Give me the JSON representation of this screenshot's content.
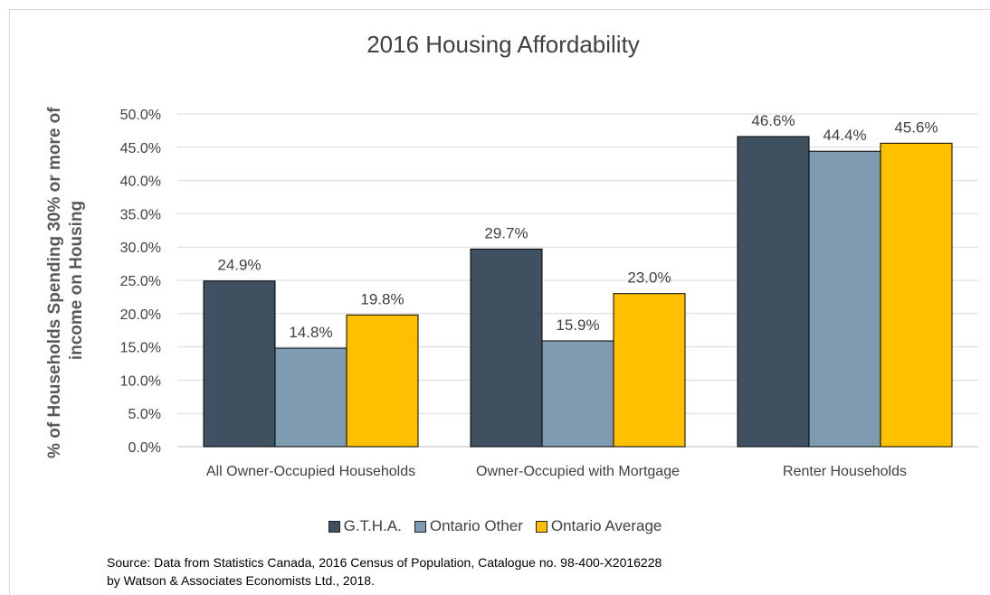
{
  "chart_data": {
    "type": "bar",
    "title": "2016 Housing Affordability",
    "y_label": [
      "% of Households Spending 30% or more of",
      "income on Housing"
    ],
    "categories": [
      "All Owner-Occupied Households",
      "Owner-Occupied with Mortgage",
      "Renter Households"
    ],
    "series": [
      {
        "name": "G.T.H.A.",
        "color": "#3f5060",
        "values": [
          24.9,
          29.7,
          46.6
        ],
        "value_labels": [
          "24.9%",
          "29.7%",
          "46.6%"
        ]
      },
      {
        "name": "Ontario Other",
        "color": "#7f9bb0",
        "values": [
          14.8,
          15.9,
          44.4
        ],
        "value_labels": [
          "14.8%",
          "15.9%",
          "44.4%"
        ]
      },
      {
        "name": "Ontario Average",
        "color": "#ffc000",
        "values": [
          19.8,
          23.0,
          45.6
        ],
        "value_labels": [
          "19.8%",
          "23.0%",
          "45.6%"
        ]
      }
    ],
    "ylim": [
      0,
      50
    ],
    "yticks": [
      {
        "value": 0,
        "label": "0.0%"
      },
      {
        "value": 5,
        "label": "5.0%"
      },
      {
        "value": 10,
        "label": "10.0%"
      },
      {
        "value": 15,
        "label": "15.0%"
      },
      {
        "value": 20,
        "label": "20.0%"
      },
      {
        "value": 25,
        "label": "25.0%"
      },
      {
        "value": 30,
        "label": "30.0%"
      },
      {
        "value": 35,
        "label": "35.0%"
      },
      {
        "value": 40,
        "label": "40.0%"
      },
      {
        "value": 45,
        "label": "45.0%"
      },
      {
        "value": 50,
        "label": "50.0%"
      }
    ],
    "grid": true,
    "legend": "bottom",
    "source": [
      "Source:  Data from Statistics Canada, 2016 Census of Population, Catalogue  no. 98-400-X2016228",
      "by Watson & Associates Economists Ltd., 2018."
    ]
  }
}
